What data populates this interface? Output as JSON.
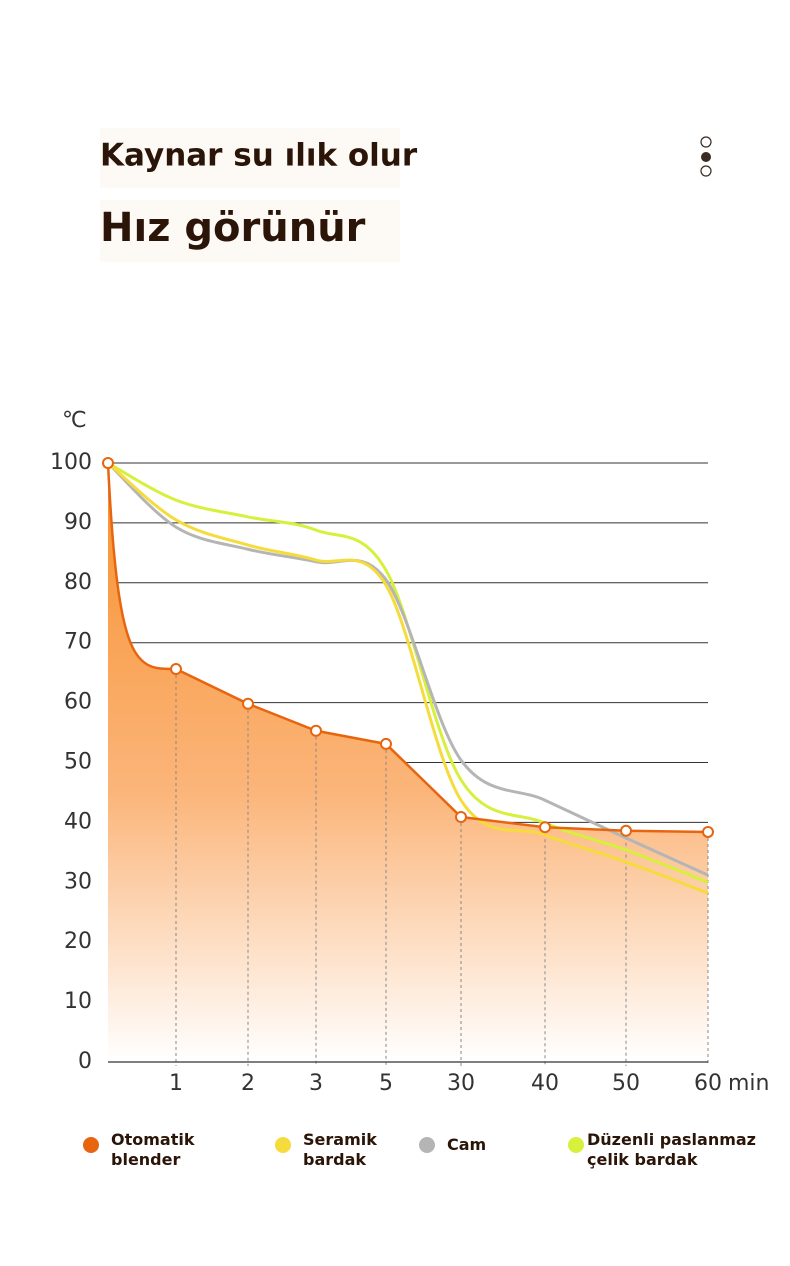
{
  "header": {
    "title": "Kaynar su ılık olur",
    "subtitle": "Hız görünür"
  },
  "chart_data": {
    "type": "line",
    "ylabel": "℃",
    "xlabel": "min",
    "categories": [
      null,
      "1",
      "2",
      "3",
      "5",
      "30",
      "40",
      "50",
      "60"
    ],
    "ylim": [
      0,
      100
    ],
    "yticks": [
      0,
      10,
      20,
      30,
      40,
      50,
      60,
      70,
      80,
      90,
      100
    ],
    "grid": true,
    "series": [
      {
        "name": "Otomatik blender",
        "color": "#e8650f",
        "values": [
          100,
          65.6,
          59.8,
          55.3,
          53.1,
          40.9,
          39.2,
          38.6,
          38.4
        ]
      },
      {
        "name": "Seramik bardak",
        "color": "#f5dc3c",
        "values": [
          100,
          90.5,
          86.3,
          83.8,
          79.6,
          43.7,
          37.9,
          33.4,
          28.2
        ]
      },
      {
        "name": "Cam",
        "color": "#b5b5b5",
        "values": [
          100,
          89.3,
          85.6,
          83.5,
          80.5,
          50.4,
          43.7,
          37.4,
          31.2
        ]
      },
      {
        "name": "Düzenli paslanmaz çelik bardak",
        "color": "#d6f03c",
        "values": [
          100,
          93.8,
          91.0,
          88.8,
          82.1,
          47.1,
          39.9,
          35.4,
          30.0
        ]
      }
    ]
  }
}
